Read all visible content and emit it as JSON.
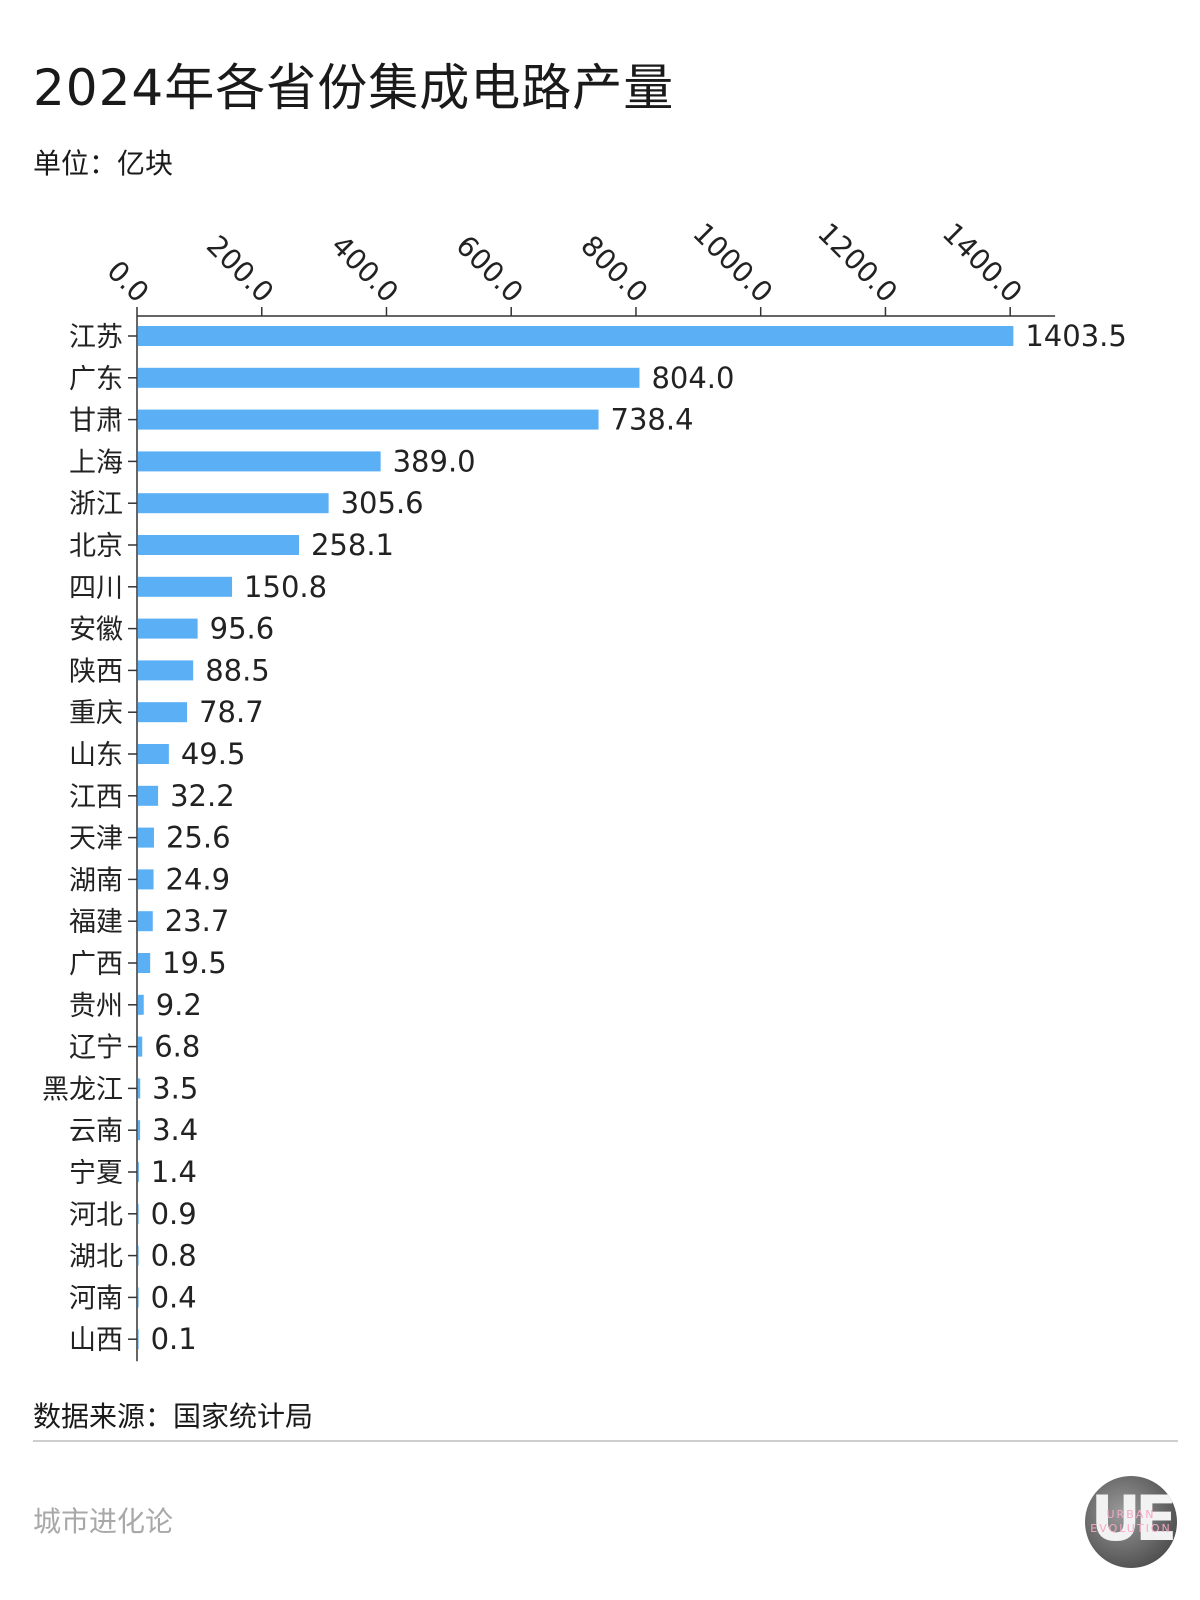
{
  "chart_data": {
    "type": "bar",
    "orientation": "horizontal",
    "title": "2024年各省份集成电路产量",
    "subtitle": "单位：亿块",
    "categories": [
      "江苏",
      "广东",
      "甘肃",
      "上海",
      "浙江",
      "北京",
      "四川",
      "安徽",
      "陕西",
      "重庆",
      "山东",
      "江西",
      "天津",
      "湖南",
      "福建",
      "广西",
      "贵州",
      "辽宁",
      "黑龙江",
      "云南",
      "宁夏",
      "河北",
      "湖北",
      "河南",
      "山西"
    ],
    "values": [
      1403.5,
      804.0,
      738.4,
      389.0,
      305.6,
      258.1,
      150.8,
      95.6,
      88.5,
      78.7,
      49.5,
      32.2,
      25.6,
      24.9,
      23.7,
      19.5,
      9.2,
      6.8,
      3.5,
      3.4,
      1.4,
      0.9,
      0.8,
      0.4,
      0.1
    ],
    "value_labels": [
      "1403.5",
      "804.0",
      "738.4",
      "389.0",
      "305.6",
      "258.1",
      "150.8",
      "95.6",
      "88.5",
      "78.7",
      "49.5",
      "32.2",
      "25.6",
      "24.9",
      "23.7",
      "19.5",
      "9.2",
      "6.8",
      "3.5",
      "3.4",
      "1.4",
      "0.9",
      "0.8",
      "0.4",
      "0.1"
    ],
    "xticks": [
      0,
      200,
      400,
      600,
      800,
      1000,
      1200,
      1400
    ],
    "xtick_labels": [
      "0.0",
      "200.0",
      "400.0",
      "600.0",
      "800.0",
      "1000.0",
      "1200.0",
      "1400.0"
    ],
    "xlim": [
      0,
      1472
    ],
    "bar_color": "#5aaff5",
    "axis_position": "top",
    "source": "数据来源：国家统计局"
  },
  "footer": {
    "brand": "城市进化论",
    "logo_text": "UE",
    "logo_sub1": "URBAN",
    "logo_sub2": "EVOLUTION"
  }
}
